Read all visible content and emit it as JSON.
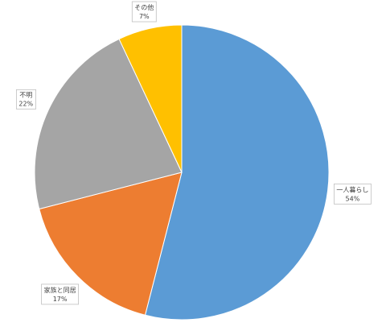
{
  "chart_data": {
    "type": "pie",
    "categories": [
      "一人暮らし",
      "家族と同居",
      "不明",
      "その他"
    ],
    "values": [
      54,
      17,
      22,
      7
    ],
    "value_labels": [
      "54%",
      "17%",
      "22%",
      "7%"
    ],
    "colors": [
      "#5b9bd5",
      "#ed7d31",
      "#a5a5a5",
      "#ffc000"
    ]
  }
}
